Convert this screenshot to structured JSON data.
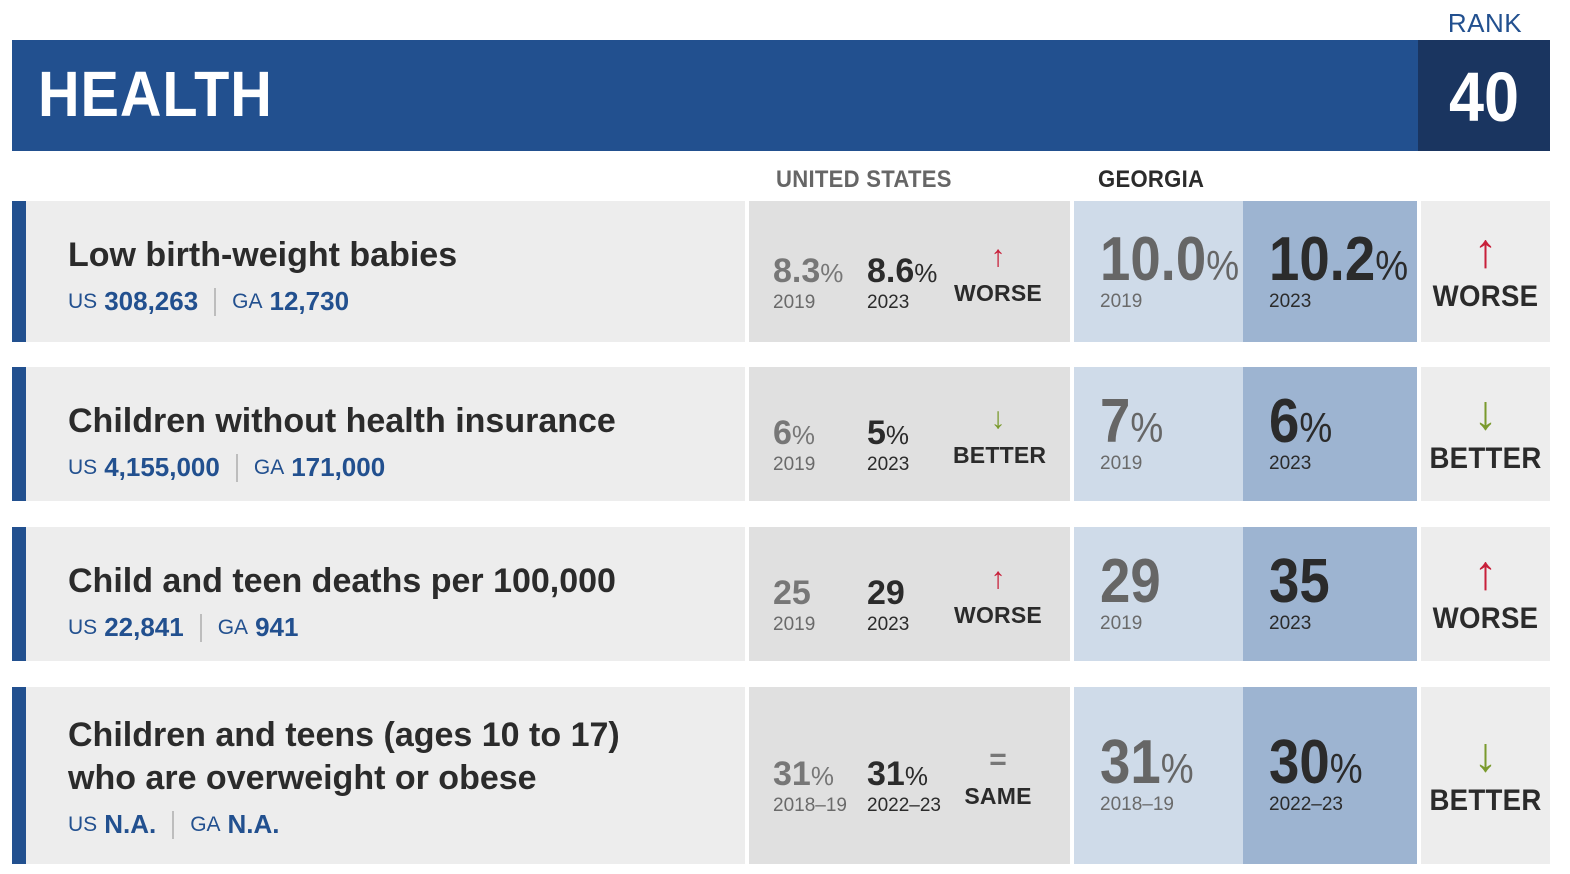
{
  "header": {
    "title": "HEALTH",
    "rank_label": "RANK",
    "rank_value": "40"
  },
  "columns": {
    "us": "UNITED STATES",
    "ga": "GEORGIA"
  },
  "colors": {
    "brand": "#22508f",
    "rank_bg": "#1a3560",
    "worse": "#c8203a",
    "better": "#7a9a2d"
  },
  "indicators": [
    {
      "title_lines": [
        "Low birth-weight babies"
      ],
      "us_prefix": "US",
      "us_count": "308,263",
      "ga_prefix": "GA",
      "ga_count": "12,730",
      "us_old": "8.3",
      "us_old_unit": "%",
      "us_old_year": "2019",
      "us_new": "8.6",
      "us_new_unit": "%",
      "us_new_year": "2023",
      "us_trend": "WORSE",
      "us_trend_icon": "↑",
      "ga_old": "10.0",
      "ga_old_unit": "%",
      "ga_old_year": "2019",
      "ga_new": "10.2",
      "ga_new_unit": "%",
      "ga_new_year": "2023",
      "ga_trend": "WORSE",
      "ga_trend_icon": "↑"
    },
    {
      "title_lines": [
        "Children without health insurance"
      ],
      "us_prefix": "US",
      "us_count": "4,155,000",
      "ga_prefix": "GA",
      "ga_count": "171,000",
      "us_old": "6",
      "us_old_unit": "%",
      "us_old_year": "2019",
      "us_new": "5",
      "us_new_unit": "%",
      "us_new_year": "2023",
      "us_trend": "BETTER",
      "us_trend_icon": "↓",
      "ga_old": "7",
      "ga_old_unit": "%",
      "ga_old_year": "2019",
      "ga_new": "6",
      "ga_new_unit": "%",
      "ga_new_year": "2023",
      "ga_trend": "BETTER",
      "ga_trend_icon": "↓"
    },
    {
      "title_lines": [
        "Child and teen deaths per 100,000"
      ],
      "us_prefix": "US",
      "us_count": "22,841",
      "ga_prefix": "GA",
      "ga_count": "941",
      "us_old": "25",
      "us_old_unit": "",
      "us_old_year": "2019",
      "us_new": "29",
      "us_new_unit": "",
      "us_new_year": "2023",
      "us_trend": "WORSE",
      "us_trend_icon": "↑",
      "ga_old": "29",
      "ga_old_unit": "",
      "ga_old_year": "2019",
      "ga_new": "35",
      "ga_new_unit": "",
      "ga_new_year": "2023",
      "ga_trend": "WORSE",
      "ga_trend_icon": "↑"
    },
    {
      "title_lines": [
        "Children and teens (ages 10 to 17)",
        "who are overweight or obese"
      ],
      "us_prefix": "US",
      "us_count": "N.A.",
      "ga_prefix": "GA",
      "ga_count": "N.A.",
      "us_old": "31",
      "us_old_unit": "%",
      "us_old_year": "2018–19",
      "us_new": "31",
      "us_new_unit": "%",
      "us_new_year": "2022–23",
      "us_trend": "SAME",
      "us_trend_icon": "=",
      "ga_old": "31",
      "ga_old_unit": "%",
      "ga_old_year": "2018–19",
      "ga_new": "30",
      "ga_new_unit": "%",
      "ga_new_year": "2022–23",
      "ga_trend": "BETTER",
      "ga_trend_icon": "↓"
    }
  ]
}
